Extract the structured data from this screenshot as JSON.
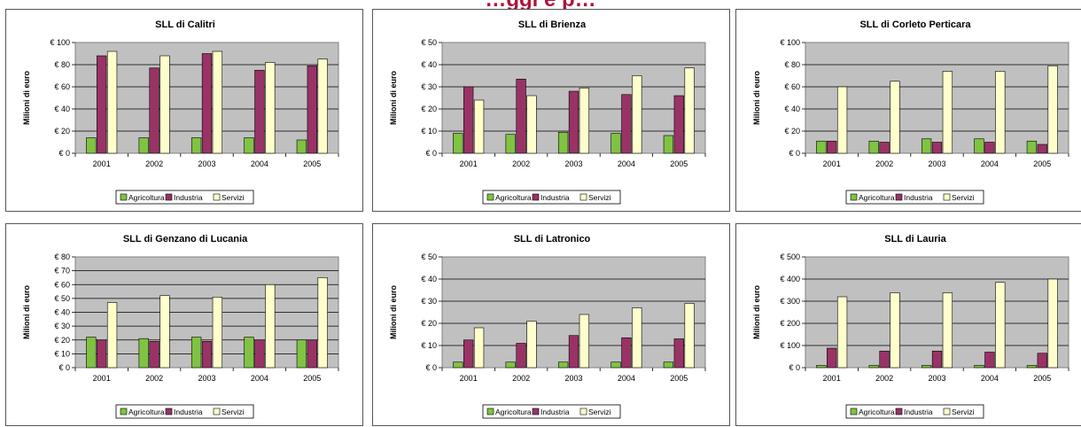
{
  "page_title": "…ggi e p…",
  "legend_labels": [
    "Agricoltura",
    "Industria",
    "Servizi"
  ],
  "colors": {
    "Agricoltura": "#80c342",
    "Industria": "#993366",
    "Servizi": "#ffffcc",
    "plot_bg": "#c0c0c0"
  },
  "chart_data": [
    {
      "type": "bar",
      "title": "SLL di Calitri",
      "ylabel": "Milioni di euro",
      "categories": [
        "2001",
        "2002",
        "2003",
        "2004",
        "2005"
      ],
      "yticks": [
        "€ 0",
        "€ 20",
        "€ 40",
        "€ 60",
        "€ 80",
        "€ 100"
      ],
      "ylim": [
        0,
        100
      ],
      "legend": "bottom",
      "grid": true,
      "series": [
        {
          "name": "Agricoltura",
          "values": [
            14,
            14,
            14,
            14,
            12
          ]
        },
        {
          "name": "Industria",
          "values": [
            88,
            77,
            90,
            75,
            79
          ]
        },
        {
          "name": "Servizi",
          "values": [
            92,
            88,
            92,
            82,
            85
          ]
        }
      ]
    },
    {
      "type": "bar",
      "title": "SLL di Brienza",
      "ylabel": "Milioni di euro",
      "categories": [
        "2001",
        "2002",
        "2003",
        "2004",
        "2005"
      ],
      "yticks": [
        "€ 0",
        "€ 10",
        "€ 20",
        "€ 30",
        "€ 40",
        "€ 50"
      ],
      "ylim": [
        0,
        50
      ],
      "legend": "bottom",
      "grid": true,
      "series": [
        {
          "name": "Agricoltura",
          "values": [
            9,
            8.5,
            9.5,
            9,
            8
          ]
        },
        {
          "name": "Industria",
          "values": [
            30,
            33.5,
            28,
            26.5,
            26
          ]
        },
        {
          "name": "Servizi",
          "values": [
            24,
            26,
            29.5,
            35,
            38.5
          ]
        }
      ]
    },
    {
      "type": "bar",
      "title": "SLL di Corleto Perticara",
      "ylabel": "Milioni di euro",
      "categories": [
        "2001",
        "2002",
        "2003",
        "2004",
        "2005"
      ],
      "yticks": [
        "€ 0",
        "€ 20",
        "€ 40",
        "€ 60",
        "€ 80",
        "€ 100"
      ],
      "ylim": [
        0,
        100
      ],
      "legend": "bottom",
      "grid": true,
      "series": [
        {
          "name": "Agricoltura",
          "values": [
            11,
            11,
            13,
            13,
            11
          ]
        },
        {
          "name": "Industria",
          "values": [
            11,
            10,
            10,
            10,
            8
          ]
        },
        {
          "name": "Servizi",
          "values": [
            60,
            65,
            74,
            74,
            79
          ]
        }
      ]
    },
    {
      "type": "bar",
      "title": "SLL di Genzano di Lucania",
      "ylabel": "Milioni di euro",
      "categories": [
        "2001",
        "2002",
        "2003",
        "2004",
        "2005"
      ],
      "yticks": [
        "€ 0",
        "€ 10",
        "€ 20",
        "€ 30",
        "€ 40",
        "€ 50",
        "€ 60",
        "€ 70",
        "€ 80"
      ],
      "ylim": [
        0,
        80
      ],
      "legend": "bottom",
      "grid": true,
      "series": [
        {
          "name": "Agricoltura",
          "values": [
            22,
            21,
            22,
            22,
            20
          ]
        },
        {
          "name": "Industria",
          "values": [
            20,
            19,
            19,
            20,
            20
          ]
        },
        {
          "name": "Servizi",
          "values": [
            47,
            52,
            51,
            60,
            65
          ]
        }
      ]
    },
    {
      "type": "bar",
      "title": "SLL di Latronico",
      "ylabel": "Milioni di euro",
      "categories": [
        "2001",
        "2002",
        "2003",
        "2004",
        "2005"
      ],
      "yticks": [
        "€ 0",
        "€ 10",
        "€ 20",
        "€ 30",
        "€ 40",
        "€ 50"
      ],
      "ylim": [
        0,
        50
      ],
      "legend": "bottom",
      "grid": true,
      "series": [
        {
          "name": "Agricoltura",
          "values": [
            2.5,
            2.5,
            2.5,
            2.5,
            2.5
          ]
        },
        {
          "name": "Industria",
          "values": [
            12.5,
            11,
            14.5,
            13.5,
            13
          ]
        },
        {
          "name": "Servizi",
          "values": [
            18,
            21,
            24,
            27,
            29
          ]
        }
      ]
    },
    {
      "type": "bar",
      "title": "SLL di Lauria",
      "ylabel": "Milioni di euro",
      "categories": [
        "2001",
        "2002",
        "2003",
        "2004",
        "2005"
      ],
      "yticks": [
        "€ 0",
        "€ 100",
        "€ 200",
        "€ 300",
        "€ 400",
        "€ 500"
      ],
      "ylim": [
        0,
        500
      ],
      "legend": "bottom",
      "grid": true,
      "series": [
        {
          "name": "Agricoltura",
          "values": [
            10,
            10,
            10,
            10,
            10
          ]
        },
        {
          "name": "Industria",
          "values": [
            88,
            75,
            75,
            70,
            65
          ]
        },
        {
          "name": "Servizi",
          "values": [
            320,
            338,
            338,
            385,
            400
          ]
        }
      ]
    }
  ]
}
